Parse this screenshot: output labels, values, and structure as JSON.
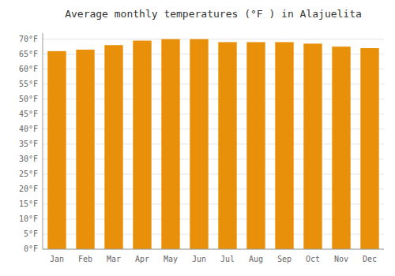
{
  "chart_data": {
    "type": "bar",
    "title": "Average monthly temperatures (°F ) in Alajuelita",
    "categories": [
      "Jan",
      "Feb",
      "Mar",
      "Apr",
      "May",
      "Jun",
      "Jul",
      "Aug",
      "Sep",
      "Oct",
      "Nov",
      "Dec"
    ],
    "values": [
      66,
      66.5,
      68,
      69.5,
      70,
      70,
      69,
      69,
      69,
      68.5,
      67.5,
      67
    ],
    "color": "#E8900A",
    "ylim": [
      0,
      72
    ],
    "yticks": [
      {
        "value": 0,
        "label": "0°F"
      },
      {
        "value": 5,
        "label": "5°F"
      },
      {
        "value": 10,
        "label": "10°F"
      },
      {
        "value": 15,
        "label": "15°F"
      },
      {
        "value": 20,
        "label": "20°F"
      },
      {
        "value": 25,
        "label": "25°F"
      },
      {
        "value": 30,
        "label": "30°F"
      },
      {
        "value": 35,
        "label": "35°F"
      },
      {
        "value": 40,
        "label": "40°F"
      },
      {
        "value": 45,
        "label": "45°F"
      },
      {
        "value": 50,
        "label": "50°F"
      },
      {
        "value": 55,
        "label": "55°F"
      },
      {
        "value": 60,
        "label": "60°F"
      },
      {
        "value": 65,
        "label": "65°F"
      },
      {
        "value": 70,
        "label": "70°F"
      }
    ],
    "grid": true
  }
}
